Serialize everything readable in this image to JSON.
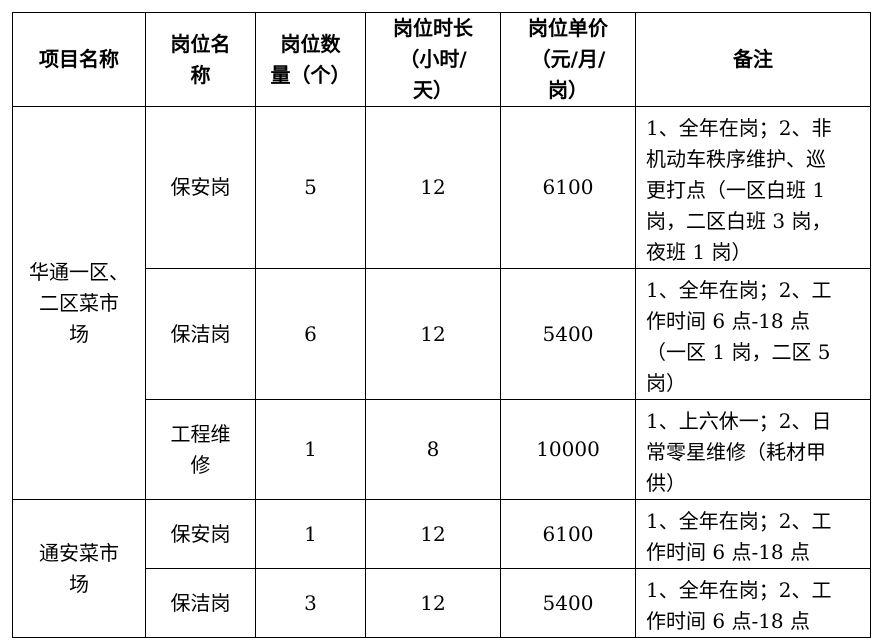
{
  "headers": [
    [
      "项目名称"
    ],
    [
      "岗位名",
      "称"
    ],
    [
      "岗位数",
      "量（个）"
    ],
    [
      "岗位时长",
      "（小时/",
      "天）"
    ],
    [
      "岗位单价",
      "（元/月/",
      "岗）"
    ],
    [
      "备注"
    ]
  ],
  "groups": [
    {
      "name": [
        "华通一区、",
        "二区菜市",
        "场"
      ]
    },
    {
      "name": [
        "通安菜市",
        "场"
      ]
    }
  ],
  "rows": [
    {
      "post": [
        "保安岗"
      ],
      "count": "5",
      "hours": "12",
      "price": "6100",
      "note": [
        "1、全年在岗；2、非",
        "机动车秩序维护、巡",
        "更打点（一区白班 1",
        "岗，二区白班 3 岗，",
        "夜班 1 岗）"
      ]
    },
    {
      "post": [
        "保洁岗"
      ],
      "count": "6",
      "hours": "12",
      "price": "5400",
      "note": [
        "1、全年在岗；2、工",
        "作时间 6 点-18 点",
        "（一区 1 岗，二区 5",
        "岗）"
      ]
    },
    {
      "post": [
        "工程维",
        "修"
      ],
      "count": "1",
      "hours": "8",
      "price": "10000",
      "note": [
        "1、上六休一；2、日",
        "常零星维修（耗材甲",
        "供）"
      ]
    },
    {
      "post": [
        "保安岗"
      ],
      "count": "1",
      "hours": "12",
      "price": "6100",
      "note": [
        "1、全年在岗；2、工",
        "作时间 6 点-18 点"
      ]
    },
    {
      "post": [
        "保洁岗"
      ],
      "count": "3",
      "hours": "12",
      "price": "5400",
      "note": [
        "1、全年在岗；2、工",
        "作时间 6 点-18 点"
      ]
    }
  ]
}
